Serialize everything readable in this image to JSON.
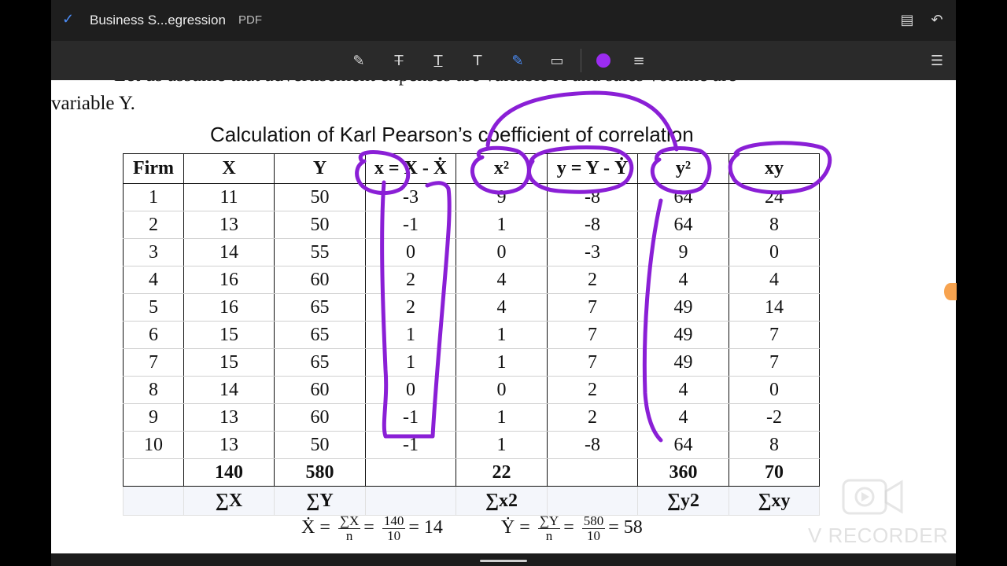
{
  "app": {
    "title": "Business S...egression",
    "format": "PDF"
  },
  "document": {
    "cut_line": "Let us assume that advertisement expenses are variable X and sales volume are",
    "line2": "variable Y.",
    "table_title": "Calculation of Karl Pearson’s coefficient of correlation",
    "headers": [
      "Firm",
      "X",
      "Y",
      "x = X - Ẋ",
      "x²",
      "y = Y - Ẏ",
      "y²",
      "xy"
    ],
    "rows": [
      [
        "1",
        "11",
        "50",
        "-3",
        "9",
        "-8",
        "64",
        "24"
      ],
      [
        "2",
        "13",
        "50",
        "-1",
        "1",
        "-8",
        "64",
        "8"
      ],
      [
        "3",
        "14",
        "55",
        "0",
        "0",
        "-3",
        "9",
        "0"
      ],
      [
        "4",
        "16",
        "60",
        "2",
        "4",
        "2",
        "4",
        "4"
      ],
      [
        "5",
        "16",
        "65",
        "2",
        "4",
        "7",
        "49",
        "14"
      ],
      [
        "6",
        "15",
        "65",
        "1",
        "1",
        "7",
        "49",
        "7"
      ],
      [
        "7",
        "15",
        "65",
        "1",
        "1",
        "7",
        "49",
        "7"
      ],
      [
        "8",
        "14",
        "60",
        "0",
        "0",
        "2",
        "4",
        "0"
      ],
      [
        "9",
        "13",
        "60",
        "-1",
        "1",
        "2",
        "4",
        "-2"
      ],
      [
        "10",
        "13",
        "50",
        "-1",
        "1",
        "-8",
        "64",
        "8"
      ]
    ],
    "totals": [
      "",
      "140",
      "580",
      "",
      "22",
      "",
      "360",
      "70"
    ],
    "sigma": [
      "",
      "∑X",
      "∑Y",
      "",
      "∑x2",
      "",
      "∑y2",
      "∑xy"
    ],
    "formula": {
      "xbar": "Ẋ",
      "xnum": "∑X",
      "xden": "n",
      "xnum2": "140",
      "xden2": "10",
      "xresult": "14",
      "ybar": "Ẏ",
      "ynum": "∑Y",
      "yden": "n",
      "ynum2": "580",
      "yden2": "10",
      "yresult": "58"
    }
  },
  "watermark": "V RECORDER",
  "colors": {
    "ink": "#8a1fd6",
    "ink_button": "#9b2cf0",
    "topbar": "#1e1e1e",
    "toolbar": "#2a2a2a",
    "check": "#4b8df8"
  },
  "icons": [
    "check-icon",
    "highlighter-icon",
    "strikethrough-icon",
    "underline-icon",
    "text-icon",
    "pen-icon",
    "comment-icon",
    "color-swatch-icon",
    "line-weight-icon",
    "share-icon",
    "undo-icon",
    "list-icon"
  ]
}
